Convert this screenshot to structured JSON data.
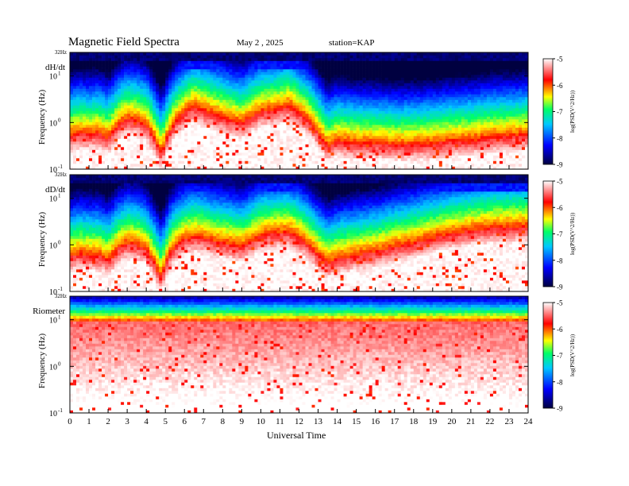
{
  "header": {
    "title": "Magnetic  Field  Spectra",
    "date": "May 2  , 2025",
    "station": "station=KAP"
  },
  "chart_data": {
    "type": "heatmap",
    "xlabel": "Universal Time",
    "x_ticks": [
      "0",
      "1",
      "2",
      "3",
      "4",
      "5",
      "6",
      "7",
      "8",
      "9",
      "10",
      "11",
      "12",
      "13",
      "14",
      "15",
      "16",
      "17",
      "18",
      "19",
      "20",
      "21",
      "22",
      "23",
      "24"
    ],
    "xlim": [
      0,
      24
    ],
    "y_scale": "log",
    "colorscale": [
      "#000040",
      "#0000ff",
      "#00c8ff",
      "#00ff66",
      "#ffff00",
      "#ff0000",
      "#ffffff"
    ],
    "panels": [
      {
        "id": "dhdt",
        "name": "dH/dt",
        "ylabel": "Frequency  (Hz)",
        "top_tick": "32Hz",
        "y_ticks": [
          {
            "base": "10",
            "exp": "1",
            "value": 10
          },
          {
            "base": "10",
            "exp": "0",
            "value": 1
          },
          {
            "base": "10",
            "exp": "-1",
            "value": 0.1
          }
        ],
        "colorbar": {
          "label": "log(PSD(V^2/Hz))",
          "ticks": [
            "-5",
            "-6",
            "-7",
            "-8",
            "-9"
          ],
          "range": [
            -9,
            -5
          ]
        },
        "pc1_band_hz": [
          [
            0,
            0.5
          ],
          [
            0.5,
            0.6
          ],
          [
            1,
            0.55
          ],
          [
            1.5,
            0.6
          ],
          [
            2,
            0.45
          ],
          [
            2.5,
            0.85
          ],
          [
            3,
            1.2
          ],
          [
            3.5,
            1.1
          ],
          [
            4,
            0.9
          ],
          [
            4.5,
            0.4
          ],
          [
            4.8,
            0.22
          ],
          [
            5.2,
            0.6
          ],
          [
            5.6,
            1.1
          ],
          [
            6,
            1.6
          ],
          [
            6.5,
            2.2
          ],
          [
            7,
            1.8
          ],
          [
            7.5,
            1.5
          ],
          [
            8,
            1.3
          ],
          [
            8.5,
            1.1
          ],
          [
            9,
            0.95
          ],
          [
            9.5,
            1.3
          ],
          [
            10,
            1.7
          ],
          [
            10.5,
            1.8
          ],
          [
            11,
            2.0
          ],
          [
            11.5,
            2.3
          ],
          [
            12,
            1.6
          ],
          [
            12.5,
            1.1
          ],
          [
            13,
            0.6
          ],
          [
            13.5,
            0.3
          ],
          [
            14,
            0.4
          ],
          [
            15,
            0.35
          ],
          [
            16,
            0.35
          ],
          [
            17,
            0.32
          ],
          [
            18,
            0.33
          ],
          [
            19,
            0.35
          ],
          [
            20,
            0.4
          ],
          [
            21,
            0.42
          ],
          [
            22,
            0.48
          ],
          [
            23,
            0.5
          ],
          [
            24,
            0.55
          ]
        ]
      },
      {
        "id": "dddt",
        "name": "dD/dt",
        "ylabel": "Frequency  (Hz)",
        "top_tick": "32Hz",
        "y_ticks": [
          {
            "base": "10",
            "exp": "1",
            "value": 10
          },
          {
            "base": "10",
            "exp": "0",
            "value": 1
          },
          {
            "base": "10",
            "exp": "-1",
            "value": 0.1
          }
        ],
        "colorbar": {
          "label": "log(PSD(V^2/Hz))",
          "ticks": [
            "-5",
            "-6",
            "-7",
            "-8",
            "-9"
          ],
          "range": [
            -9,
            -5
          ]
        },
        "pc1_band_hz": [
          [
            0,
            0.55
          ],
          [
            0.5,
            0.65
          ],
          [
            1,
            0.6
          ],
          [
            1.5,
            0.6
          ],
          [
            2,
            0.45
          ],
          [
            2.5,
            0.8
          ],
          [
            3,
            1.1
          ],
          [
            3.5,
            1.0
          ],
          [
            4,
            0.8
          ],
          [
            4.5,
            0.35
          ],
          [
            4.8,
            0.2
          ],
          [
            5.2,
            0.6
          ],
          [
            5.6,
            1.0
          ],
          [
            6,
            1.3
          ],
          [
            6.5,
            1.5
          ],
          [
            7,
            1.4
          ],
          [
            7.5,
            1.2
          ],
          [
            8,
            1.1
          ],
          [
            8.5,
            1.0
          ],
          [
            9,
            0.9
          ],
          [
            9.5,
            1.2
          ],
          [
            10,
            1.6
          ],
          [
            10.5,
            1.7
          ],
          [
            11,
            1.8
          ],
          [
            11.5,
            1.9
          ],
          [
            12,
            1.4
          ],
          [
            12.5,
            1.0
          ],
          [
            13,
            0.6
          ],
          [
            13.5,
            0.4
          ],
          [
            14,
            0.5
          ],
          [
            15,
            0.6
          ],
          [
            16,
            0.7
          ],
          [
            17,
            0.9
          ],
          [
            18,
            1.1
          ],
          [
            19,
            1.4
          ],
          [
            20,
            1.7
          ],
          [
            21,
            2.0
          ],
          [
            22,
            2.3
          ],
          [
            23,
            2.4
          ],
          [
            24,
            2.5
          ]
        ]
      },
      {
        "id": "riometer",
        "name": "Riometer",
        "ylabel": "Frequency  (Hz)",
        "top_tick": "32Hz",
        "y_ticks": [
          {
            "base": "10",
            "exp": "1",
            "value": 10
          },
          {
            "base": "10",
            "exp": "0",
            "value": 1
          },
          {
            "base": "10",
            "exp": "-1",
            "value": 0.1
          }
        ],
        "colorbar": {
          "label": "log(PSD(V^2/Hz))",
          "ticks": [
            "-5",
            "-6",
            "-7",
            "-8",
            "-9"
          ],
          "range": [
            -9,
            -5
          ]
        },
        "pc1_band_hz": [
          [
            0,
            9
          ],
          [
            12,
            9
          ],
          [
            24,
            9
          ]
        ]
      }
    ]
  }
}
